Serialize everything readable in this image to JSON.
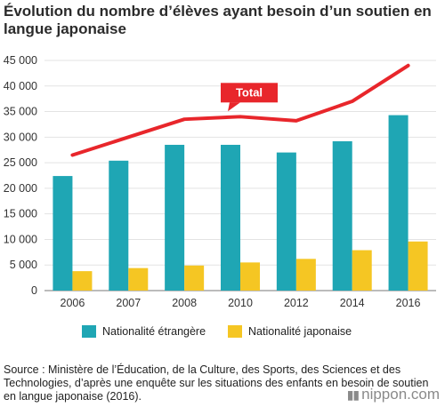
{
  "title": "Évolution du nombre d’élèves ayant besoin d’un soutien en langue japonaise",
  "source": "Source : Ministère de l’Éducation, de la Culture, des Sports, des Sciences et des Technologies, d’après une enquête sur les situations des enfants en besoin de soutien en langue japonaise (2016).",
  "logo": "nippon.com",
  "colors": {
    "foreign": "#1fa6b4",
    "japanese": "#f5c623",
    "total": "#e8262b",
    "grid": "#e3e3e3"
  },
  "chart_data": {
    "type": "bar",
    "categories": [
      "2006",
      "2007",
      "2008",
      "2010",
      "2012",
      "2014",
      "2016"
    ],
    "series": [
      {
        "name": "Nationalité étrangère",
        "type": "bar",
        "color": "#1fa6b4",
        "values": [
          22400,
          25400,
          28500,
          28500,
          27000,
          29200,
          34300
        ]
      },
      {
        "name": "Nationalité japonaise",
        "type": "bar",
        "color": "#f5c623",
        "values": [
          3800,
          4400,
          4900,
          5500,
          6200,
          7900,
          9600
        ]
      },
      {
        "name": "Total",
        "type": "line",
        "color": "#e8262b",
        "values": [
          26500,
          30000,
          33500,
          34000,
          33200,
          37000,
          44000
        ]
      }
    ],
    "yticks": [
      "0",
      "5 000",
      "10 000",
      "15 000",
      "20 000",
      "25 000",
      "30 000",
      "35 000",
      "40 000",
      "45 000"
    ],
    "ylim": [
      0,
      45000
    ],
    "xlabel": "",
    "ylabel": "",
    "grid": true,
    "legend": "bottom",
    "annotations": [
      {
        "text": "Total",
        "series": "Total"
      }
    ]
  }
}
